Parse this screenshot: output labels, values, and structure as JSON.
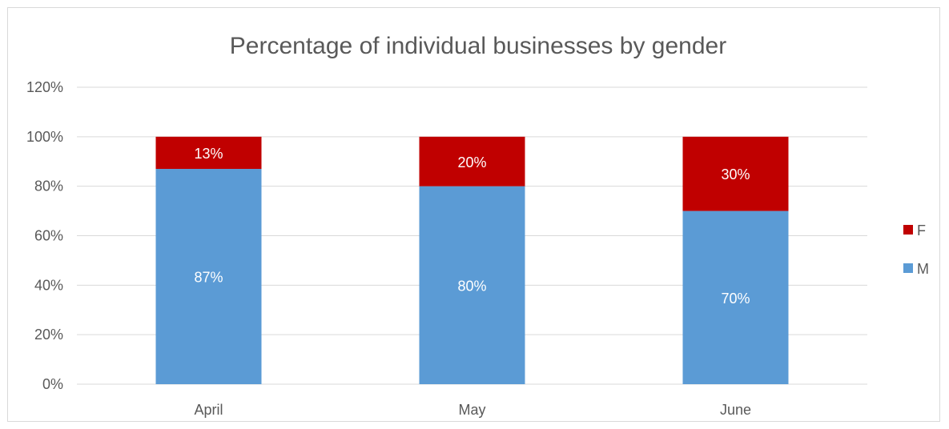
{
  "chart_data": {
    "type": "bar",
    "stacked": true,
    "title": "Percentage of individual businesses by gender",
    "categories": [
      "April",
      "May",
      "June"
    ],
    "series": [
      {
        "name": "M",
        "values": [
          87,
          80,
          70
        ],
        "color": "#5b9bd5",
        "labels": [
          "87%",
          "80%",
          "70%"
        ]
      },
      {
        "name": "F",
        "values": [
          13,
          20,
          30
        ],
        "color": "#c00000",
        "labels": [
          "13%",
          "20%",
          "30%"
        ]
      }
    ],
    "ylim": [
      0,
      120
    ],
    "yticks": [
      0,
      20,
      40,
      60,
      80,
      100,
      120
    ],
    "ytick_labels": [
      "0%",
      "20%",
      "40%",
      "60%",
      "80%",
      "100%",
      "120%"
    ],
    "grid": true,
    "legend_position": "right",
    "legend_order": [
      "F",
      "M"
    ],
    "gridline_color": "#d9d9d9",
    "text_color": "#595959"
  }
}
